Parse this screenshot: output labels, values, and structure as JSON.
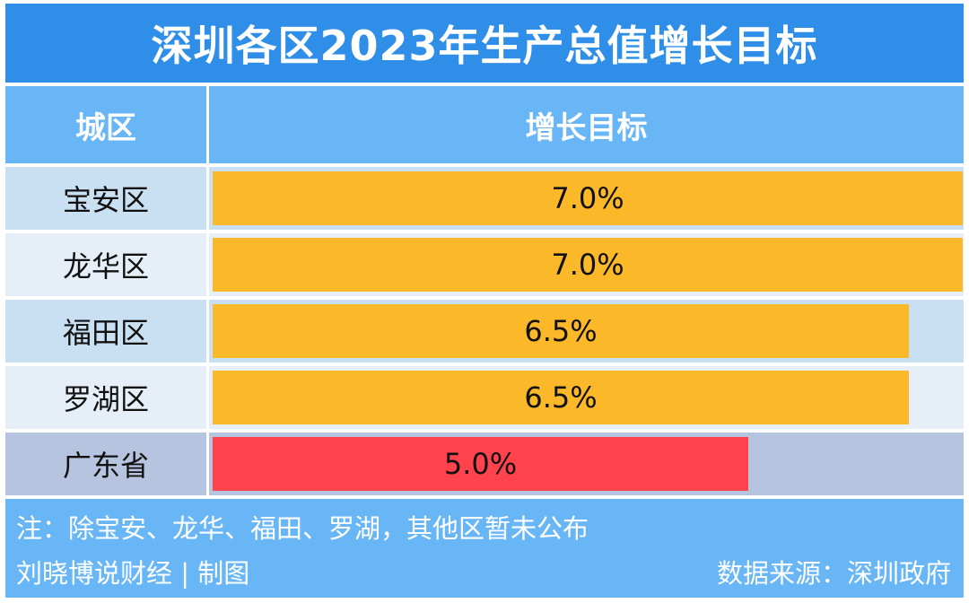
{
  "title": "深圳各区2023年生产总值增长目标",
  "header": {
    "city": "城区",
    "target": "增长目标"
  },
  "colors": {
    "title_bg": "#2f8ee8",
    "header_bg": "#69b6f7",
    "row_bg_a": "#c9dff2",
    "row_bg_b": "#e6eff8",
    "row_bg_last": "#b7c4e0",
    "bar_district": "#fbb829",
    "bar_province": "#ff434c"
  },
  "chart_data": {
    "type": "bar",
    "orientation": "horizontal",
    "title": "深圳各区2023年生产总值增长目标",
    "xlabel": "增长目标",
    "ylabel": "城区",
    "xlim": [
      0,
      7.0
    ],
    "categories": [
      "宝安区",
      "龙华区",
      "福田区",
      "罗湖区",
      "广东省"
    ],
    "values": [
      7.0,
      7.0,
      6.5,
      6.5,
      5.0
    ],
    "labels": [
      "7.0%",
      "7.0%",
      "6.5%",
      "6.5%",
      "5.0%"
    ],
    "highlight": [
      false,
      false,
      false,
      false,
      true
    ],
    "grid": false
  },
  "footer": {
    "note": "注：除宝安、龙华、福田、罗湖，其他区暂未公布",
    "credit": "刘晓博说财经 | 制图",
    "source": "数据来源：深圳政府"
  }
}
